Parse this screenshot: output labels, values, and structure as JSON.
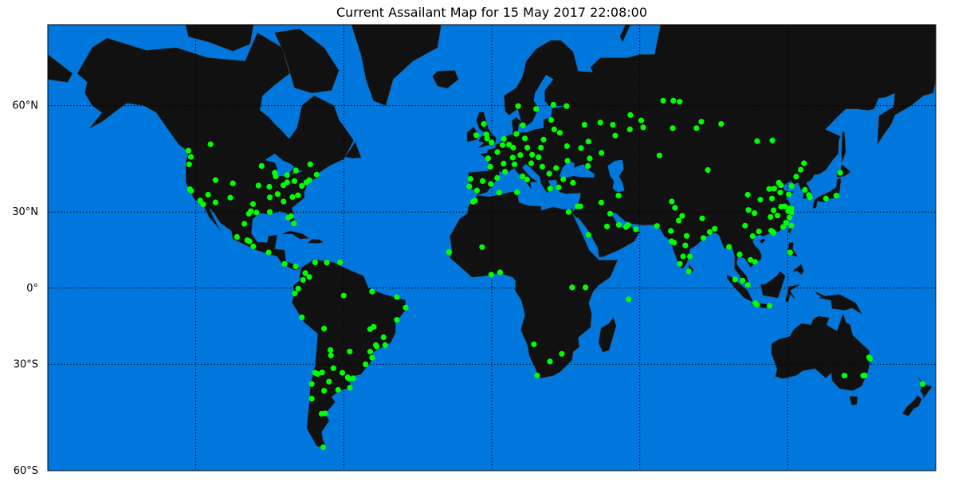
{
  "chart_data": {
    "type": "scatter",
    "title": "Current Assailant Map for 15 May 2017 22:08:00",
    "projection": "mercator",
    "lon_range": [
      -180,
      180
    ],
    "lat_range": [
      -60,
      73
    ],
    "grid": true,
    "meridians": [
      -120,
      -60,
      0,
      60,
      120
    ],
    "parallels": [
      {
        "lat": 60,
        "label": "60°N"
      },
      {
        "lat": 30,
        "label": "30°N"
      },
      {
        "lat": 0,
        "label": "0°"
      },
      {
        "lat": -30,
        "label": "30°S"
      },
      {
        "lat": -60,
        "label": "60°S"
      }
    ],
    "colors": {
      "ocean": "#0077dd",
      "land": "#111111",
      "borders": "#cccccc",
      "points": "#00ff00"
    },
    "points": [
      [
        -122,
        47.6
      ],
      [
        -122.7,
        45.5
      ],
      [
        -122.4,
        37.8
      ],
      [
        -121.9,
        37.3
      ],
      [
        -118.2,
        34
      ],
      [
        -117,
        32.7
      ],
      [
        -115,
        36
      ],
      [
        -112,
        33.4
      ],
      [
        -112,
        40.7
      ],
      [
        -105,
        39.7
      ],
      [
        -96.8,
        32.8
      ],
      [
        -95.4,
        29.8
      ],
      [
        -97.7,
        30.3
      ],
      [
        -98.5,
        29.4
      ],
      [
        -94.6,
        39
      ],
      [
        -87.6,
        41.9
      ],
      [
        -83,
        42.3
      ],
      [
        -79.4,
        43.7
      ],
      [
        -73.6,
        45.5
      ],
      [
        -74,
        40.7
      ],
      [
        -75.2,
        40
      ],
      [
        -77,
        38.9
      ],
      [
        -71,
        42.4
      ],
      [
        -84.4,
        33.7
      ],
      [
        -80.8,
        35.2
      ],
      [
        -80.2,
        25.8
      ],
      [
        -81.4,
        28.5
      ],
      [
        -82.5,
        28
      ],
      [
        -86.8,
        36.2
      ],
      [
        -90.2,
        38.6
      ],
      [
        -93.3,
        45
      ],
      [
        -83,
        40
      ],
      [
        -80,
        40.4
      ],
      [
        -90,
        30
      ],
      [
        -90,
        35.1
      ],
      [
        -78.6,
        35.8
      ],
      [
        -114,
        51
      ],
      [
        -123,
        49.3
      ],
      [
        -99.1,
        19.4
      ],
      [
        -103.3,
        20.7
      ],
      [
        -100.3,
        25.7
      ],
      [
        -98.2,
        19
      ],
      [
        -96.7,
        17
      ],
      [
        -90.5,
        14.6
      ],
      [
        -84,
        10
      ],
      [
        -106,
        35
      ],
      [
        -88,
        43
      ],
      [
        -84.5,
        39.1
      ],
      [
        -66.9,
        10.5
      ],
      [
        -74,
        4.6
      ],
      [
        -75.6,
        6.2
      ],
      [
        -76.5,
        3.4
      ],
      [
        -78.5,
        -0.2
      ],
      [
        -79.9,
        -2.2
      ],
      [
        -77,
        -12
      ],
      [
        -70.6,
        -33.4
      ],
      [
        -71.6,
        -33
      ],
      [
        -73,
        -36.8
      ],
      [
        -58.4,
        -34.6
      ],
      [
        -57.9,
        -35
      ],
      [
        -60.6,
        -33
      ],
      [
        -64.2,
        -31.4
      ],
      [
        -68.8,
        -32.9
      ],
      [
        -56.2,
        -34.9
      ],
      [
        -46.6,
        -23.5
      ],
      [
        -43.2,
        -22.9
      ],
      [
        -43.9,
        -19.9
      ],
      [
        -47.9,
        -15.8
      ],
      [
        -49.3,
        -25.4
      ],
      [
        -51.2,
        -30
      ],
      [
        -48.5,
        -27.6
      ],
      [
        -38.5,
        -13
      ],
      [
        -34.9,
        -8
      ],
      [
        -38.5,
        -3.7
      ],
      [
        -48.5,
        -1.4
      ],
      [
        -60,
        -3.1
      ],
      [
        -49.3,
        -16.7
      ],
      [
        -47,
        -22.9
      ],
      [
        -68,
        -16.5
      ],
      [
        -57.6,
        -25.3
      ],
      [
        -68.3,
        -54.8
      ],
      [
        -73,
        -41.5
      ],
      [
        -67.5,
        -45.9
      ],
      [
        -68,
        -39
      ],
      [
        -62.3,
        -38.7
      ],
      [
        -57.5,
        -38
      ],
      [
        -65.2,
        -26.8
      ],
      [
        -65.4,
        -24.8
      ],
      [
        -71.6,
        10.6
      ],
      [
        -61.5,
        10.6
      ],
      [
        -79.5,
        9
      ],
      [
        -69,
        -46
      ],
      [
        -66,
        -36
      ],
      [
        -0.1,
        51.5
      ],
      [
        -2.2,
        53.5
      ],
      [
        -6.3,
        53.3
      ],
      [
        -3.2,
        56
      ],
      [
        -1.9,
        52.5
      ],
      [
        2.3,
        48.9
      ],
      [
        4.8,
        45.7
      ],
      [
        5.4,
        43.3
      ],
      [
        -0.6,
        44.8
      ],
      [
        -1.5,
        47.2
      ],
      [
        -3.7,
        40.4
      ],
      [
        2.2,
        41.4
      ],
      [
        -0.4,
        39.5
      ],
      [
        -6,
        37.4
      ],
      [
        -9.1,
        38.7
      ],
      [
        -8.6,
        41.1
      ],
      [
        4.9,
        52.4
      ],
      [
        4.4,
        50.8
      ],
      [
        8.7,
        50.1
      ],
      [
        13.4,
        52.5
      ],
      [
        10,
        53.6
      ],
      [
        11.6,
        48.1
      ],
      [
        7,
        50.9
      ],
      [
        8.5,
        47.4
      ],
      [
        9.2,
        45.5
      ],
      [
        12.5,
        41.9
      ],
      [
        14.3,
        40.9
      ],
      [
        16.4,
        48.2
      ],
      [
        14.4,
        50.1
      ],
      [
        21,
        52.2
      ],
      [
        19.9,
        50.1
      ],
      [
        19,
        47.5
      ],
      [
        26.1,
        44.4
      ],
      [
        23.3,
        42.7
      ],
      [
        23.7,
        38
      ],
      [
        29,
        41
      ],
      [
        32.9,
        39.9
      ],
      [
        27.1,
        38.4
      ],
      [
        30.5,
        50.5
      ],
      [
        36.2,
        50
      ],
      [
        30.7,
        46.5
      ],
      [
        27.6,
        53.9
      ],
      [
        37.6,
        55.8
      ],
      [
        30.3,
        59.9
      ],
      [
        18,
        59.3
      ],
      [
        10.7,
        59.9
      ],
      [
        12.6,
        55.7
      ],
      [
        25,
        60.2
      ],
      [
        24.1,
        56.9
      ],
      [
        25.3,
        54.7
      ],
      [
        20.5,
        44.8
      ],
      [
        16,
        45.8
      ],
      [
        3,
        36.7
      ],
      [
        10.2,
        36.8
      ],
      [
        -7.6,
        33.6
      ],
      [
        -6.8,
        34
      ],
      [
        49.1,
        55.8
      ],
      [
        44,
        56.3
      ],
      [
        50.1,
        53.2
      ],
      [
        60.6,
        56.8
      ],
      [
        61.4,
        55.2
      ],
      [
        56.2,
        58
      ],
      [
        56,
        54.7
      ],
      [
        39.7,
        47.2
      ],
      [
        39,
        45
      ],
      [
        39.2,
        51.7
      ],
      [
        44.5,
        48.7
      ],
      [
        73.4,
        55
      ],
      [
        83,
        55
      ],
      [
        85,
        56.5
      ],
      [
        93,
        56
      ],
      [
        69.5,
        61
      ],
      [
        73.6,
        61
      ],
      [
        76.2,
        60.8
      ],
      [
        87.6,
        43.8
      ],
      [
        68,
        48
      ],
      [
        107.6,
        51.8
      ],
      [
        113.8,
        52
      ],
      [
        34.8,
        32
      ],
      [
        35.9,
        32
      ],
      [
        46.7,
        24.7
      ],
      [
        55.3,
        25.2
      ],
      [
        54.4,
        24.5
      ],
      [
        51.5,
        25.3
      ],
      [
        48,
        29.4
      ],
      [
        51.4,
        35.7
      ],
      [
        44.4,
        33.3
      ],
      [
        58.4,
        23.6
      ],
      [
        39.2,
        21.5
      ],
      [
        31.2,
        30
      ],
      [
        67,
        24.9
      ],
      [
        74.3,
        31.5
      ],
      [
        73,
        33.7
      ],
      [
        77.2,
        28.6
      ],
      [
        72.9,
        19
      ],
      [
        73.9,
        18.5
      ],
      [
        77.6,
        13
      ],
      [
        80.3,
        13
      ],
      [
        78.5,
        17.4
      ],
      [
        88.4,
        22.6
      ],
      [
        72.6,
        23
      ],
      [
        75.8,
        26.9
      ],
      [
        79.9,
        6.9
      ],
      [
        76.3,
        10
      ],
      [
        90.4,
        23.8
      ],
      [
        85.3,
        27.7
      ],
      [
        79,
        21.1
      ],
      [
        85.8,
        20.3
      ],
      [
        116.4,
        39.9
      ],
      [
        117.2,
        39.1
      ],
      [
        121.5,
        31.2
      ],
      [
        120.2,
        30.3
      ],
      [
        118.8,
        32
      ],
      [
        120.6,
        31.3
      ],
      [
        114.3,
        30.6
      ],
      [
        113.3,
        23.1
      ],
      [
        114.1,
        22.5
      ],
      [
        114.2,
        22.3
      ],
      [
        104.1,
        30.7
      ],
      [
        106.5,
        29.6
      ],
      [
        108.9,
        34.3
      ],
      [
        113.6,
        34.7
      ],
      [
        117,
        36.7
      ],
      [
        120.4,
        36.1
      ],
      [
        123.4,
        41.8
      ],
      [
        126.6,
        45.8
      ],
      [
        125.3,
        43.9
      ],
      [
        121.6,
        38.9
      ],
      [
        119.3,
        26.1
      ],
      [
        118.1,
        24.5
      ],
      [
        115.9,
        28.7
      ],
      [
        113,
        28.2
      ],
      [
        102.7,
        25
      ],
      [
        108.3,
        22.8
      ],
      [
        117.3,
        31.9
      ],
      [
        112.5,
        37.9
      ],
      [
        114.5,
        38
      ],
      [
        103.8,
        36
      ],
      [
        120.7,
        28
      ],
      [
        121.5,
        29.9
      ],
      [
        121.5,
        25
      ],
      [
        127,
        37.6
      ],
      [
        129,
        35.1
      ],
      [
        128.6,
        35.9
      ],
      [
        139.7,
        35.7
      ],
      [
        135.5,
        34.7
      ],
      [
        141.3,
        43
      ],
      [
        105.8,
        21
      ],
      [
        106.7,
        10.8
      ],
      [
        100.5,
        13.8
      ],
      [
        101.7,
        3.1
      ],
      [
        103.8,
        1.3
      ],
      [
        106.8,
        -6.2
      ],
      [
        112.7,
        -7.3
      ],
      [
        107.6,
        -6.9
      ],
      [
        121,
        14.6
      ],
      [
        98.7,
        3.6
      ],
      [
        104.9,
        11.6
      ],
      [
        96.2,
        16.8
      ],
      [
        3.4,
        6.5
      ],
      [
        -0.2,
        5.6
      ],
      [
        -17.4,
        14.7
      ],
      [
        -3.9,
        16.7
      ],
      [
        32.6,
        0.3
      ],
      [
        38,
        0.3
      ],
      [
        17.1,
        -22.6
      ],
      [
        23.6,
        -29
      ],
      [
        28.4,
        -26.2
      ],
      [
        18.4,
        -33.9
      ],
      [
        55.5,
        -4.6
      ],
      [
        143,
        -34
      ],
      [
        150.6,
        -34
      ],
      [
        151.2,
        -33.9
      ],
      [
        153,
        -27.5
      ],
      [
        153.4,
        -28
      ],
      [
        174.7,
        -36.8
      ]
    ]
  }
}
